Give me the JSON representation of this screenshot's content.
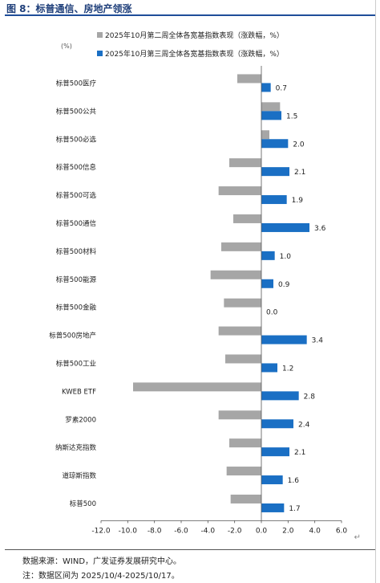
{
  "figure": {
    "title": "图 8：标普通信、房地产领涨",
    "source_note": "数据来源：WIND，广发证券发展研究中心。",
    "range_note": "注：数据区间为 2025/10/4-2025/10/17。"
  },
  "chart_data": {
    "type": "bar",
    "orientation": "horizontal",
    "unit_label": "(%)",
    "categories": [
      "标普500医疗",
      "标普500公共",
      "标普500必选",
      "标普500信息",
      "标普500可选",
      "标普500通信",
      "标普500材料",
      "标普500能源",
      "标普500金融",
      "标普500房地产",
      "标普500工业",
      "KWEB ETF",
      "罗素2000",
      "纳斯达克指数",
      "道琼斯指数",
      "标普500"
    ],
    "series": [
      {
        "name": "2025年10月第二周全体各宽基指数表现（涨跌幅，%）",
        "color": "#a6a6a6",
        "values": [
          -1.8,
          1.4,
          0.6,
          -2.4,
          -3.2,
          -2.1,
          -3.0,
          -3.8,
          -2.8,
          -3.2,
          -2.7,
          -9.6,
          -3.2,
          -2.4,
          -2.6,
          -2.3
        ]
      },
      {
        "name": "2025年10月第三周全体各宽基指数表现（涨跌幅，%）",
        "color": "#1a6fc4",
        "values": [
          0.7,
          1.5,
          2.0,
          2.1,
          1.9,
          3.6,
          1.0,
          0.9,
          0.0,
          3.4,
          1.2,
          2.8,
          2.4,
          2.1,
          1.6,
          1.7
        ]
      }
    ],
    "data_labels": [
      "0.7",
      "1.5",
      "2.0",
      "2.1",
      "1.9",
      "3.6",
      "1.0",
      "0.9",
      "0.0",
      "3.4",
      "1.2",
      "2.8",
      "2.4",
      "2.1",
      "1.6",
      "1.7"
    ],
    "xlim": [
      -12,
      6
    ],
    "xticks": [
      -12,
      -10,
      -8,
      -6,
      -4,
      -2,
      0,
      2,
      4,
      6
    ],
    "xtick_labels": [
      "-12.0",
      "-10.0",
      "-8.0",
      "-6.0",
      "-4.0",
      "-2.0",
      "0.0",
      "2.0",
      "4.0",
      "6.0"
    ],
    "legend_position": "top",
    "grid": false
  }
}
